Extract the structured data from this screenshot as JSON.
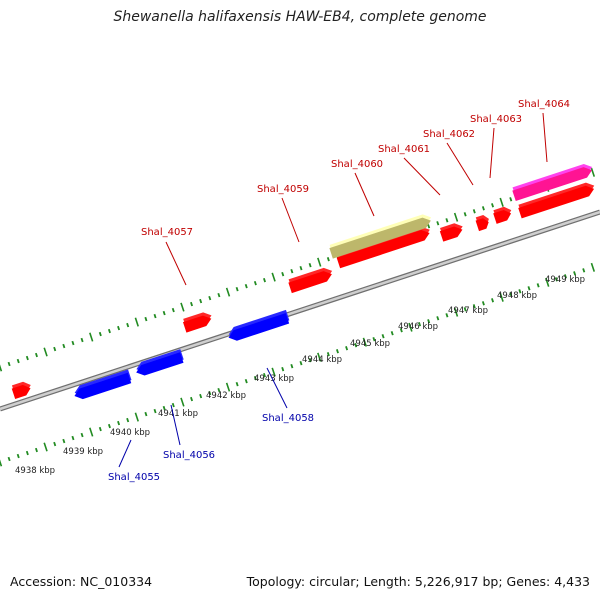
{
  "title": "Shewanella halifaxensis HAW-EB4, complete genome",
  "footer": {
    "accession": "Accession: NC_010334",
    "topology": "Topology: circular; Length: 5,226,917 bp; Genes: 4,433"
  },
  "colors": {
    "forward_gene": "#ff0000",
    "reverse_gene": "#0000ff",
    "rrna_like": "#bdb76b",
    "trna_like": "#ff1493",
    "backbone": "#888888",
    "ticks": "#228b22",
    "forward_label": "#c00000",
    "reverse_label": "#0000aa"
  },
  "kbp_labels": [
    "4938 kbp",
    "4939 kbp",
    "4940 kbp",
    "4941 kbp",
    "4942 kbp",
    "4943 kbp",
    "4944 kbp",
    "4945 kbp",
    "4946 kbp",
    "4947 kbp",
    "4948 kbp",
    "4949 kbp"
  ],
  "gene_labels": [
    "Shal_4055",
    "Shal_4056",
    "Shal_4057",
    "Shal_4058",
    "Shal_4059",
    "Shal_4060",
    "Shal_4061",
    "Shal_4062",
    "Shal_4063",
    "Shal_4064"
  ]
}
